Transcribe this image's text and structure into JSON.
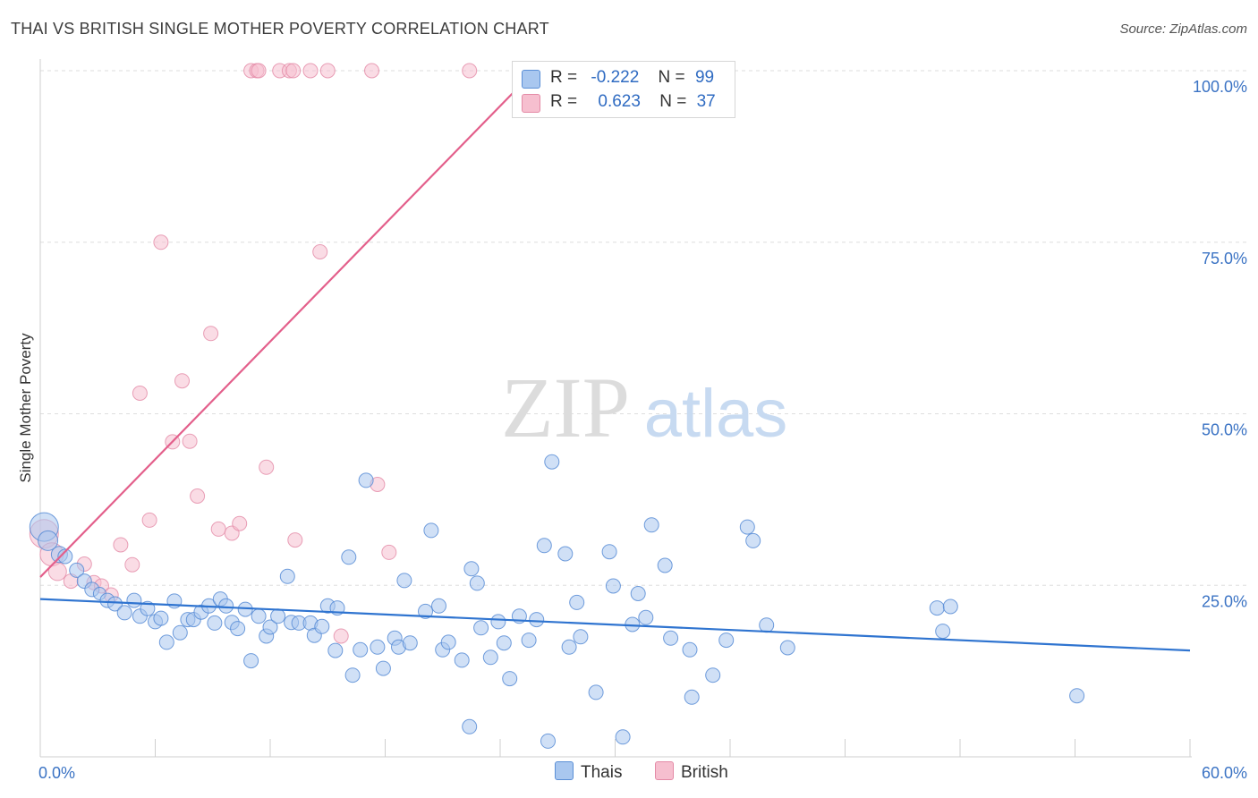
{
  "title": "THAI VS BRITISH SINGLE MOTHER POVERTY CORRELATION CHART",
  "source": "Source: ZipAtlas.com",
  "watermark": {
    "zip": "ZIP",
    "atlas": "atlas"
  },
  "legend": {
    "rows": [
      {
        "r_label": "R =",
        "r_value": "-0.222",
        "n_label": "N =",
        "n_value": "99",
        "color": "#a9c7ef",
        "stroke": "#5b8fd6"
      },
      {
        "r_label": "R =",
        "r_value": "0.623",
        "n_label": "N =",
        "n_value": "37",
        "color": "#f6bfcf",
        "stroke": "#e4809f"
      }
    ]
  },
  "bottom_legend": {
    "thais": "Thais",
    "british": "British"
  },
  "chart_data": {
    "type": "scatter",
    "title": "THAI VS BRITISH SINGLE MOTHER POVERTY CORRELATION CHART",
    "xlabel": "",
    "ylabel": "Single Mother Poverty",
    "xlim": [
      0,
      60
    ],
    "ylim": [
      0,
      102
    ],
    "x_tick_labels": [
      "0.0%",
      "60.0%"
    ],
    "y_tick_labels": [
      "100.0%",
      "75.0%",
      "50.0%",
      "25.0%"
    ],
    "y_ticks": [
      100,
      75,
      50,
      25
    ],
    "grid": true,
    "legend_position": "top-center",
    "series": [
      {
        "name": "Thais",
        "color": "#a9c7ef",
        "stroke": "#4f86d3",
        "trend": {
          "x": [
            0,
            60
          ],
          "y": [
            23.0,
            15.5
          ],
          "color": "#2f74d0"
        },
        "points": [
          [
            0.2,
            33.5,
            16
          ],
          [
            0.4,
            31.5,
            11
          ],
          [
            1.0,
            29.5,
            9
          ],
          [
            1.3,
            29.2,
            8
          ],
          [
            1.9,
            27.2,
            8
          ],
          [
            2.3,
            25.6,
            8
          ],
          [
            2.7,
            24.4,
            8
          ],
          [
            3.1,
            23.8,
            7
          ],
          [
            3.5,
            22.8,
            8
          ],
          [
            3.9,
            22.3,
            8
          ],
          [
            4.4,
            21.0,
            8
          ],
          [
            4.9,
            22.8,
            8
          ],
          [
            5.2,
            20.5,
            8
          ],
          [
            5.6,
            21.6,
            8
          ],
          [
            6.0,
            19.7,
            8
          ],
          [
            6.3,
            20.2,
            8
          ],
          [
            6.6,
            16.7,
            8
          ],
          [
            7.0,
            22.7,
            8
          ],
          [
            7.3,
            18.1,
            8
          ],
          [
            7.7,
            20.0,
            8
          ],
          [
            8.0,
            20.0,
            8
          ],
          [
            8.4,
            21.1,
            8
          ],
          [
            8.8,
            22.0,
            8
          ],
          [
            9.1,
            19.5,
            8
          ],
          [
            9.4,
            23.0,
            8
          ],
          [
            9.7,
            22.0,
            8
          ],
          [
            10.0,
            19.6,
            8
          ],
          [
            10.3,
            18.7,
            8
          ],
          [
            10.7,
            21.5,
            8
          ],
          [
            11.0,
            14.0,
            8
          ],
          [
            11.4,
            20.5,
            8
          ],
          [
            11.8,
            17.6,
            8
          ],
          [
            12.0,
            18.9,
            8
          ],
          [
            12.4,
            20.5,
            8
          ],
          [
            12.9,
            26.3,
            8
          ],
          [
            13.1,
            19.6,
            8
          ],
          [
            13.5,
            19.5,
            8
          ],
          [
            14.1,
            19.5,
            8
          ],
          [
            14.3,
            17.7,
            8
          ],
          [
            14.7,
            19.0,
            8
          ],
          [
            15.0,
            22.0,
            8
          ],
          [
            15.5,
            21.7,
            8
          ],
          [
            15.4,
            15.5,
            8
          ],
          [
            16.1,
            29.1,
            8
          ],
          [
            16.3,
            11.9,
            8
          ],
          [
            16.7,
            15.6,
            8
          ],
          [
            17.0,
            40.3,
            8
          ],
          [
            17.6,
            16.0,
            8
          ],
          [
            17.9,
            12.9,
            8
          ],
          [
            18.5,
            17.3,
            8
          ],
          [
            18.7,
            16.0,
            8
          ],
          [
            19.0,
            25.7,
            8
          ],
          [
            19.3,
            16.6,
            8
          ],
          [
            20.1,
            21.2,
            8
          ],
          [
            20.4,
            33.0,
            8
          ],
          [
            20.8,
            22.0,
            8
          ],
          [
            21.0,
            15.6,
            8
          ],
          [
            21.3,
            16.7,
            8
          ],
          [
            22.0,
            14.1,
            8
          ],
          [
            22.5,
            27.4,
            8
          ],
          [
            22.8,
            25.3,
            8
          ],
          [
            23.0,
            18.8,
            8
          ],
          [
            22.4,
            4.4,
            8
          ],
          [
            23.5,
            14.5,
            8
          ],
          [
            23.9,
            19.7,
            8
          ],
          [
            24.2,
            16.6,
            8
          ],
          [
            24.5,
            11.4,
            8
          ],
          [
            25.0,
            20.5,
            8
          ],
          [
            25.5,
            17.0,
            8
          ],
          [
            25.9,
            20.0,
            8
          ],
          [
            26.3,
            30.8,
            8
          ],
          [
            26.5,
            2.3,
            8
          ],
          [
            26.7,
            43.0,
            8
          ],
          [
            27.4,
            29.6,
            8
          ],
          [
            27.6,
            16.0,
            8
          ],
          [
            28.0,
            22.5,
            8
          ],
          [
            28.2,
            17.5,
            8
          ],
          [
            29.0,
            9.4,
            8
          ],
          [
            29.7,
            29.9,
            8
          ],
          [
            29.9,
            24.9,
            8
          ],
          [
            30.4,
            2.9,
            8
          ],
          [
            30.9,
            19.3,
            8
          ],
          [
            31.2,
            23.8,
            8
          ],
          [
            31.6,
            20.3,
            8
          ],
          [
            31.9,
            33.8,
            8
          ],
          [
            32.6,
            27.9,
            8
          ],
          [
            32.9,
            17.3,
            8
          ],
          [
            33.9,
            15.6,
            8
          ],
          [
            34.0,
            8.7,
            8
          ],
          [
            35.1,
            11.9,
            8
          ],
          [
            35.8,
            17.0,
            8
          ],
          [
            36.9,
            33.5,
            8
          ],
          [
            37.2,
            31.5,
            8
          ],
          [
            37.9,
            19.2,
            8
          ],
          [
            39.0,
            15.9,
            8
          ],
          [
            46.8,
            21.7,
            8
          ],
          [
            47.1,
            18.3,
            8
          ],
          [
            47.5,
            21.9,
            8
          ],
          [
            54.1,
            8.9,
            8
          ]
        ]
      },
      {
        "name": "British",
        "color": "#f6bfcf",
        "stroke": "#e48aa6",
        "trend": {
          "x": [
            0,
            25.8
          ],
          "y": [
            26.2,
            100.0
          ],
          "color": "#e35f8b"
        },
        "points": [
          [
            0.2,
            32.5,
            16
          ],
          [
            0.6,
            29.5,
            13
          ],
          [
            0.9,
            27.0,
            10
          ],
          [
            1.6,
            25.6,
            8
          ],
          [
            2.3,
            28.1,
            8
          ],
          [
            2.8,
            25.4,
            8
          ],
          [
            3.2,
            24.9,
            8
          ],
          [
            3.7,
            23.6,
            8
          ],
          [
            4.2,
            30.9,
            8
          ],
          [
            4.8,
            28.0,
            8
          ],
          [
            5.2,
            53.0,
            8
          ],
          [
            5.7,
            34.5,
            8
          ],
          [
            6.3,
            75.0,
            8
          ],
          [
            6.9,
            45.9,
            8
          ],
          [
            7.4,
            54.8,
            8
          ],
          [
            7.8,
            46.0,
            8
          ],
          [
            8.2,
            38.0,
            8
          ],
          [
            8.9,
            61.7,
            8
          ],
          [
            9.3,
            33.2,
            8
          ],
          [
            10.0,
            32.6,
            8
          ],
          [
            10.4,
            34.0,
            8
          ],
          [
            11.0,
            100.0,
            8
          ],
          [
            11.3,
            100.0,
            8
          ],
          [
            11.4,
            100.0,
            8
          ],
          [
            11.8,
            42.2,
            8
          ],
          [
            12.5,
            100.0,
            8
          ],
          [
            13.0,
            100.0,
            8
          ],
          [
            13.2,
            100.0,
            8
          ],
          [
            13.3,
            31.6,
            8
          ],
          [
            14.1,
            100.0,
            8
          ],
          [
            14.6,
            73.6,
            8
          ],
          [
            15.0,
            100.0,
            8
          ],
          [
            15.7,
            17.6,
            8
          ],
          [
            17.3,
            100.0,
            8
          ],
          [
            17.6,
            39.7,
            8
          ],
          [
            18.2,
            29.8,
            8
          ],
          [
            22.4,
            100.0,
            8
          ]
        ]
      }
    ]
  }
}
